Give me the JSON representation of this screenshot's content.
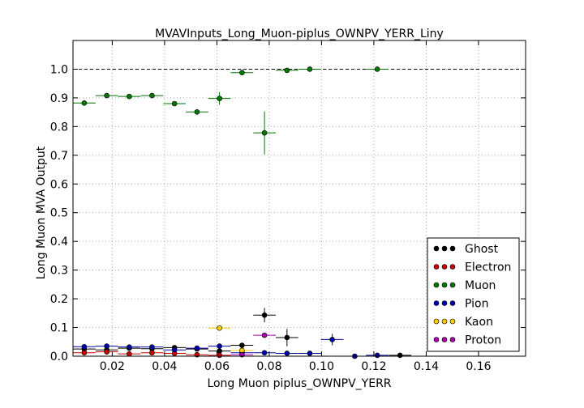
{
  "chart_data": {
    "type": "scatter",
    "title": "MVAVInputs_Long_Muon-piplus_OWNPV_YERR_Liny",
    "xlabel": "Long Muon piplus_OWNPV_YERR",
    "ylabel": "Long Muon MVA Output",
    "xlim": [
      0.005,
      0.178
    ],
    "ylim": [
      0.0,
      1.1
    ],
    "x_ticks": [
      "0.02",
      "0.04",
      "0.06",
      "0.08",
      "0.10",
      "0.12",
      "0.14",
      "0.16"
    ],
    "y_ticks": [
      "0.0",
      "0.1",
      "0.2",
      "0.3",
      "0.4",
      "0.5",
      "0.6",
      "0.7",
      "0.8",
      "0.9",
      "1.0"
    ],
    "grid": true,
    "legend_position": "bottom-right",
    "reference_line": 1.0,
    "bin_half_width": 0.0043,
    "series": [
      {
        "name": "Ghost",
        "color": "#000000",
        "points": [
          {
            "x": 0.0093,
            "y": 0.025,
            "err": 0.003
          },
          {
            "x": 0.0179,
            "y": 0.022,
            "err": 0.003
          },
          {
            "x": 0.0265,
            "y": 0.028,
            "err": 0.003
          },
          {
            "x": 0.0352,
            "y": 0.026,
            "err": 0.003
          },
          {
            "x": 0.0438,
            "y": 0.03,
            "err": 0.004
          },
          {
            "x": 0.0524,
            "y": 0.025,
            "err": 0.004
          },
          {
            "x": 0.061,
            "y": 0.018,
            "err": 0.005
          },
          {
            "x": 0.0696,
            "y": 0.038,
            "err": 0.008
          },
          {
            "x": 0.0782,
            "y": 0.143,
            "err": 0.025
          },
          {
            "x": 0.0868,
            "y": 0.065,
            "err": 0.03
          },
          {
            "x": 0.13,
            "y": 0.003,
            "err": 0.003
          }
        ]
      },
      {
        "name": "Electron",
        "color": "#cc0000",
        "points": [
          {
            "x": 0.0093,
            "y": 0.012,
            "err": 0.003
          },
          {
            "x": 0.0179,
            "y": 0.015,
            "err": 0.003
          },
          {
            "x": 0.0265,
            "y": 0.008,
            "err": 0.003
          },
          {
            "x": 0.0352,
            "y": 0.012,
            "err": 0.003
          },
          {
            "x": 0.0438,
            "y": 0.01,
            "err": 0.003
          },
          {
            "x": 0.0524,
            "y": 0.005,
            "err": 0.003
          },
          {
            "x": 0.061,
            "y": 0.003,
            "err": 0.003
          }
        ]
      },
      {
        "name": "Muon",
        "color": "#007700",
        "points": [
          {
            "x": 0.0093,
            "y": 0.882,
            "err": 0.006
          },
          {
            "x": 0.0179,
            "y": 0.908,
            "err": 0.004
          },
          {
            "x": 0.0265,
            "y": 0.905,
            "err": 0.004
          },
          {
            "x": 0.0352,
            "y": 0.908,
            "err": 0.004
          },
          {
            "x": 0.0438,
            "y": 0.88,
            "err": 0.005
          },
          {
            "x": 0.0524,
            "y": 0.851,
            "err": 0.007
          },
          {
            "x": 0.061,
            "y": 0.898,
            "err": 0.022
          },
          {
            "x": 0.0696,
            "y": 0.988,
            "err": 0.008
          },
          {
            "x": 0.0782,
            "y": 0.778,
            "err": 0.075
          },
          {
            "x": 0.0868,
            "y": 0.996,
            "err": 0.004
          },
          {
            "x": 0.0955,
            "y": 1.0,
            "err": 0.002
          },
          {
            "x": 0.1213,
            "y": 1.0,
            "err": 0.002
          }
        ]
      },
      {
        "name": "Pion",
        "color": "#0000aa",
        "points": [
          {
            "x": 0.0093,
            "y": 0.033,
            "err": 0.003
          },
          {
            "x": 0.0179,
            "y": 0.035,
            "err": 0.003
          },
          {
            "x": 0.0265,
            "y": 0.032,
            "err": 0.003
          },
          {
            "x": 0.0352,
            "y": 0.032,
            "err": 0.003
          },
          {
            "x": 0.0438,
            "y": 0.022,
            "err": 0.003
          },
          {
            "x": 0.0524,
            "y": 0.028,
            "err": 0.004
          },
          {
            "x": 0.061,
            "y": 0.035,
            "err": 0.005
          },
          {
            "x": 0.0696,
            "y": 0.012,
            "err": 0.005
          },
          {
            "x": 0.0782,
            "y": 0.012,
            "err": 0.005
          },
          {
            "x": 0.0868,
            "y": 0.01,
            "err": 0.005
          },
          {
            "x": 0.0955,
            "y": 0.01,
            "err": 0.005
          },
          {
            "x": 0.1041,
            "y": 0.058,
            "err": 0.02
          },
          {
            "x": 0.1127,
            "y": 0.0,
            "err": 0.002
          },
          {
            "x": 0.1213,
            "y": 0.003,
            "err": 0.003
          }
        ]
      },
      {
        "name": "Kaon",
        "color": "#ffcc00",
        "points": [
          {
            "x": 0.061,
            "y": 0.098,
            "err": 0.005
          },
          {
            "x": 0.0696,
            "y": 0.02,
            "err": 0.005
          }
        ]
      },
      {
        "name": "Proton",
        "color": "#aa00aa",
        "points": [
          {
            "x": 0.0696,
            "y": 0.005,
            "err": 0.003
          },
          {
            "x": 0.0782,
            "y": 0.073,
            "err": 0.005
          }
        ]
      }
    ]
  }
}
